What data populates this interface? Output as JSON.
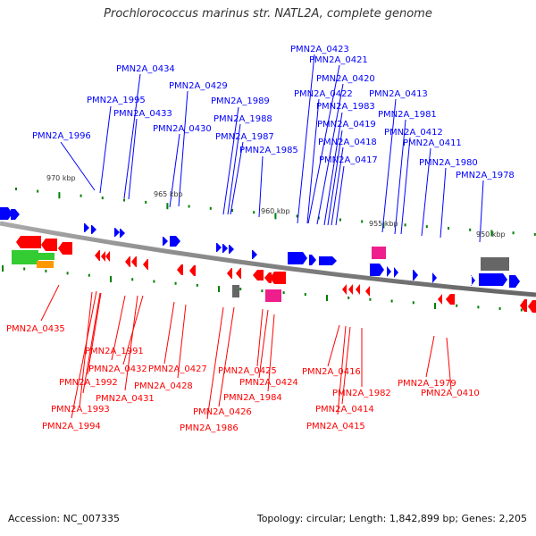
{
  "title": "Prochlorococcus marinus str. NATL2A, complete genome",
  "footer": {
    "accession": "Accession: NC_007335",
    "summary": "Topology: circular; Length: 1,842,899 bp; Genes: 2,205"
  },
  "colors": {
    "forward_gene": "#0000ff",
    "reverse_gene": "#ff0000",
    "backbone": "#888888",
    "tick": "#008000",
    "rrna": "#33cc33",
    "orange_feature": "#ff9900",
    "pink_feature": "#ee1e8c",
    "gray_feature": "#666666"
  },
  "scale_labels": [
    "970 kbp",
    "965 kbp",
    "960 kbp",
    "955 kbp",
    "950 kbp"
  ],
  "forward_labels": [
    "PMN2A_1996",
    "PMN2A_1995",
    "PMN2A_0434",
    "PMN2A_0433",
    "PMN2A_0430",
    "PMN2A_0429",
    "PMN2A_1989",
    "PMN2A_1988",
    "PMN2A_1987",
    "PMN2A_1985",
    "PMN2A_0423",
    "PMN2A_0421",
    "PMN2A_0422",
    "PMN2A_0420",
    "PMN2A_1983",
    "PMN2A_0419",
    "PMN2A_0418",
    "PMN2A_0417",
    "PMN2A_0413",
    "PMN2A_1981",
    "PMN2A_0412",
    "PMN2A_0411",
    "PMN2A_1980",
    "PMN2A_1978"
  ],
  "reverse_labels": [
    "PMN2A_0435",
    "PMN2A_1991",
    "PMN2A_0432",
    "PMN2A_1992",
    "PMN2A_0431",
    "PMN2A_1993",
    "PMN2A_1994",
    "PMN2A_0427",
    "PMN2A_0428",
    "PMN2A_0425",
    "PMN2A_0424",
    "PMN2A_1984",
    "PMN2A_0426",
    "PMN2A_1986",
    "PMN2A_0416",
    "PMN2A_1982",
    "PMN2A_0414",
    "PMN2A_0415",
    "PMN2A_1979",
    "PMN2A_0410"
  ]
}
